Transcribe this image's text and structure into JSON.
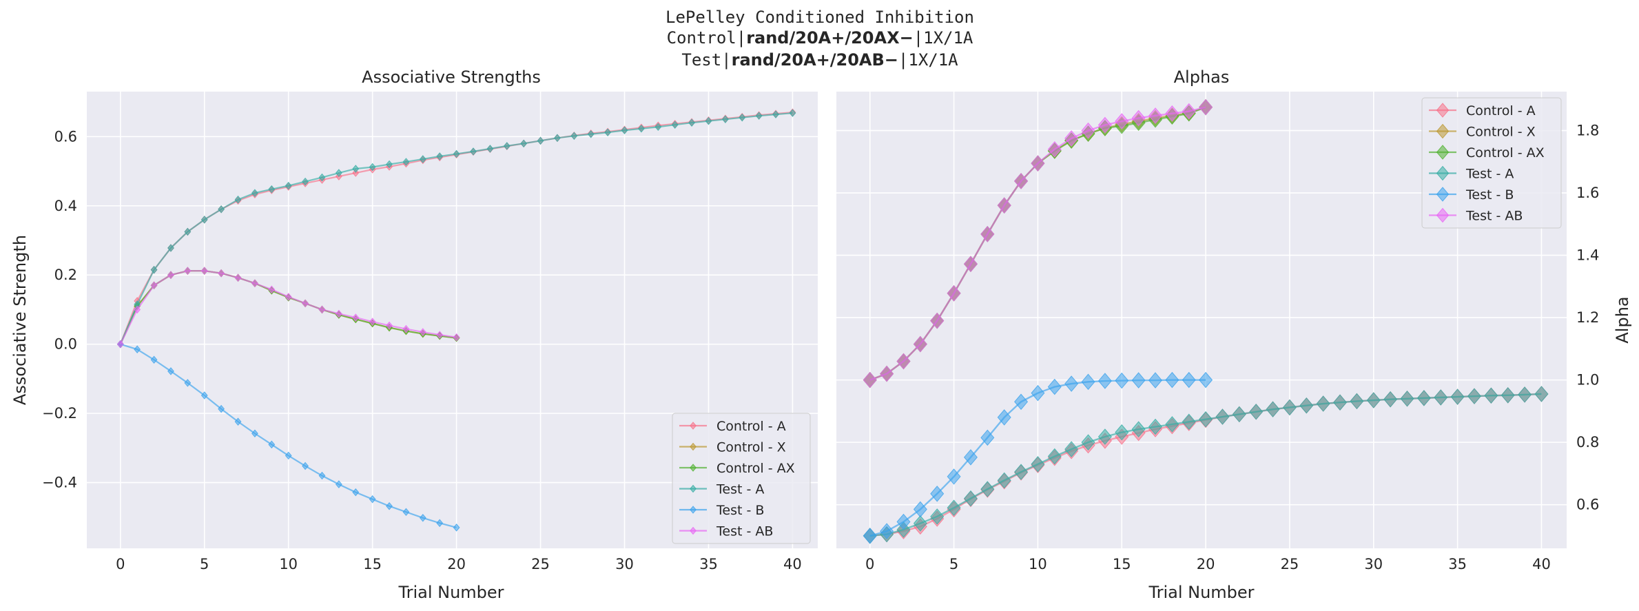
{
  "suptitle": {
    "line1": "LePelley Conditioned Inhibition",
    "line2_prefix": "Control|",
    "line2_bold": "rand/20A+/20AX−",
    "line2_suffix": "|1X/1A",
    "line3_prefix": "Test|",
    "line3_bold": "rand/20A+/20AB−",
    "line3_suffix": "|1X/1A"
  },
  "colors": {
    "Control - A": "#f77189",
    "Control - X": "#bb9832",
    "Control - AX": "#50b131",
    "Test - A": "#36ada4",
    "Test - B": "#3ba3ec",
    "Test - AB": "#e866f4"
  },
  "chart_data": [
    {
      "type": "line",
      "title": "Associative Strengths",
      "xlabel": "Trial Number",
      "ylabel": "Associative Strength",
      "xlim": [
        -2,
        41.5
      ],
      "ylim": [
        -0.59,
        0.73
      ],
      "xticks": [
        0,
        5,
        10,
        15,
        20,
        25,
        30,
        35,
        40
      ],
      "yticks": [
        -0.4,
        -0.2,
        0.0,
        0.2,
        0.4,
        0.6
      ],
      "ytick_labels": [
        "−0.4",
        "−0.2",
        "0.0",
        "0.2",
        "0.4",
        "0.6"
      ],
      "grid": true,
      "legend_position": "lower-right",
      "marker": "small-diamond",
      "series": [
        {
          "name": "Control - A",
          "x": [
            0,
            1,
            2,
            3,
            4,
            5,
            6,
            7,
            8,
            9,
            10,
            11,
            12,
            13,
            14,
            15,
            16,
            17,
            18,
            19,
            20,
            21,
            22,
            23,
            24,
            25,
            26,
            27,
            28,
            29,
            30,
            31,
            32,
            33,
            34,
            35,
            36,
            37,
            38,
            39,
            40
          ],
          "values": [
            0,
            0.125,
            0.215,
            0.278,
            0.325,
            0.36,
            0.39,
            0.415,
            0.433,
            0.445,
            0.455,
            0.465,
            0.475,
            0.485,
            0.495,
            0.505,
            0.513,
            0.522,
            0.532,
            0.54,
            0.548,
            0.556,
            0.564,
            0.572,
            0.58,
            0.588,
            0.596,
            0.603,
            0.609,
            0.614,
            0.62,
            0.626,
            0.632,
            0.637,
            0.642,
            0.647,
            0.652,
            0.657,
            0.662,
            0.666,
            0.67
          ]
        },
        {
          "name": "Control - X",
          "x": [
            0,
            1,
            2,
            3,
            4,
            5,
            6,
            7,
            8,
            9,
            10,
            11,
            12,
            13,
            14,
            15,
            16,
            17,
            18,
            19,
            20
          ],
          "values": [
            0,
            0.11,
            0.17,
            0.2,
            0.212,
            0.212,
            0.205,
            0.192,
            0.176,
            0.155,
            0.135,
            0.118,
            0.1,
            0.085,
            0.072,
            0.06,
            0.048,
            0.038,
            0.03,
            0.024,
            0.018
          ]
        },
        {
          "name": "Control - AX",
          "x": [
            0,
            1,
            2,
            3,
            4,
            5,
            6,
            7,
            8,
            9,
            10,
            11,
            12,
            13,
            14,
            15,
            16,
            17,
            18,
            19,
            20
          ],
          "values": [
            0,
            0.11,
            0.17,
            0.2,
            0.212,
            0.212,
            0.205,
            0.192,
            0.176,
            0.155,
            0.135,
            0.118,
            0.1,
            0.085,
            0.072,
            0.06,
            0.048,
            0.038,
            0.03,
            0.024,
            0.018
          ]
        },
        {
          "name": "Test - A",
          "x": [
            0,
            1,
            2,
            3,
            4,
            5,
            6,
            7,
            8,
            9,
            10,
            11,
            12,
            13,
            14,
            15,
            16,
            17,
            18,
            19,
            20,
            21,
            22,
            23,
            24,
            25,
            26,
            27,
            28,
            29,
            30,
            31,
            32,
            33,
            34,
            35,
            36,
            37,
            38,
            39,
            40
          ],
          "values": [
            0,
            0.115,
            0.215,
            0.278,
            0.325,
            0.36,
            0.39,
            0.418,
            0.437,
            0.448,
            0.458,
            0.47,
            0.482,
            0.495,
            0.507,
            0.512,
            0.52,
            0.527,
            0.535,
            0.543,
            0.55,
            0.557,
            0.565,
            0.573,
            0.58,
            0.588,
            0.596,
            0.602,
            0.607,
            0.612,
            0.618,
            0.623,
            0.628,
            0.634,
            0.64,
            0.645,
            0.65,
            0.655,
            0.66,
            0.664,
            0.668
          ]
        },
        {
          "name": "Test - B",
          "x": [
            0,
            1,
            2,
            3,
            4,
            5,
            6,
            7,
            8,
            9,
            10,
            11,
            12,
            13,
            14,
            15,
            16,
            17,
            18,
            19,
            20
          ],
          "values": [
            0,
            -0.015,
            -0.045,
            -0.078,
            -0.112,
            -0.148,
            -0.187,
            -0.224,
            -0.258,
            -0.29,
            -0.322,
            -0.352,
            -0.38,
            -0.405,
            -0.428,
            -0.448,
            -0.468,
            -0.485,
            -0.502,
            -0.517,
            -0.53
          ]
        },
        {
          "name": "Test - AB",
          "x": [
            0,
            1,
            2,
            3,
            4,
            5,
            6,
            7,
            8,
            9,
            10,
            11,
            12,
            13,
            14,
            15,
            16,
            17,
            18,
            19,
            20
          ],
          "values": [
            0,
            0.1,
            0.17,
            0.2,
            0.212,
            0.212,
            0.205,
            0.192,
            0.176,
            0.158,
            0.137,
            0.118,
            0.1,
            0.088,
            0.077,
            0.065,
            0.054,
            0.044,
            0.035,
            0.027,
            0.02
          ]
        }
      ]
    },
    {
      "type": "line",
      "title": "Alphas",
      "xlabel": "Trial Number",
      "ylabel": "Alpha",
      "xlim": [
        -2,
        41.5
      ],
      "ylim": [
        0.46,
        1.925
      ],
      "xticks": [
        0,
        5,
        10,
        15,
        20,
        25,
        30,
        35,
        40
      ],
      "yticks": [
        0.6,
        0.8,
        1.0,
        1.2,
        1.4,
        1.6,
        1.8
      ],
      "ytick_labels": [
        "0.6",
        "0.8",
        "1.0",
        "1.2",
        "1.4",
        "1.6",
        "1.8"
      ],
      "grid": true,
      "legend_position": "upper-right",
      "y_axis_side": "right",
      "marker": "large-diamond",
      "series": [
        {
          "name": "Control - A",
          "x": [
            0,
            1,
            2,
            3,
            4,
            5,
            6,
            7,
            8,
            9,
            10,
            11,
            12,
            13,
            14,
            15,
            16,
            17,
            18,
            19,
            20,
            21,
            22,
            23,
            24,
            25,
            26,
            27,
            28,
            29,
            30,
            31,
            32,
            33,
            34,
            35,
            36,
            37,
            38,
            39,
            40
          ],
          "values": [
            0.5,
            0.505,
            0.515,
            0.53,
            0.555,
            0.585,
            0.618,
            0.648,
            0.675,
            0.703,
            0.727,
            0.75,
            0.772,
            0.79,
            0.805,
            0.818,
            0.83,
            0.842,
            0.852,
            0.862,
            0.872,
            0.882,
            0.89,
            0.898,
            0.906,
            0.912,
            0.918,
            0.924,
            0.928,
            0.932,
            0.935,
            0.938,
            0.94,
            0.942,
            0.944,
            0.946,
            0.948,
            0.95,
            0.951,
            0.953,
            0.955
          ]
        },
        {
          "name": "Control - X",
          "x": [
            0,
            1,
            2,
            3,
            4,
            5,
            6,
            7,
            8,
            9,
            10,
            11,
            12,
            13,
            14,
            15,
            16,
            17,
            18,
            19,
            20
          ],
          "values": [
            1.0,
            1.02,
            1.06,
            1.115,
            1.19,
            1.278,
            1.372,
            1.468,
            1.56,
            1.638,
            1.695,
            1.735,
            1.768,
            1.79,
            1.808,
            1.82,
            1.83,
            1.84,
            1.848,
            1.856,
            1.875
          ]
        },
        {
          "name": "Control - AX",
          "x": [
            0,
            1,
            2,
            3,
            4,
            5,
            6,
            7,
            8,
            9,
            10,
            11,
            12,
            13,
            14,
            15,
            16,
            17,
            18,
            19,
            20
          ],
          "values": [
            1.0,
            1.02,
            1.06,
            1.115,
            1.19,
            1.278,
            1.372,
            1.468,
            1.56,
            1.638,
            1.695,
            1.735,
            1.768,
            1.79,
            1.808,
            1.815,
            1.825,
            1.835,
            1.845,
            1.855,
            1.875
          ]
        },
        {
          "name": "Test - A",
          "x": [
            0,
            1,
            2,
            3,
            4,
            5,
            6,
            7,
            8,
            9,
            10,
            11,
            12,
            13,
            14,
            15,
            16,
            17,
            18,
            19,
            20,
            21,
            22,
            23,
            24,
            25,
            26,
            27,
            28,
            29,
            30,
            31,
            32,
            33,
            34,
            35,
            36,
            37,
            38,
            39,
            40
          ],
          "values": [
            0.5,
            0.505,
            0.52,
            0.54,
            0.562,
            0.59,
            0.62,
            0.65,
            0.678,
            0.705,
            0.73,
            0.755,
            0.778,
            0.8,
            0.818,
            0.832,
            0.842,
            0.85,
            0.858,
            0.866,
            0.874,
            0.882,
            0.89,
            0.898,
            0.906,
            0.912,
            0.918,
            0.924,
            0.928,
            0.932,
            0.935,
            0.938,
            0.94,
            0.942,
            0.944,
            0.946,
            0.948,
            0.95,
            0.951,
            0.953,
            0.955
          ]
        },
        {
          "name": "Test - B",
          "x": [
            0,
            1,
            2,
            3,
            4,
            5,
            6,
            7,
            8,
            9,
            10,
            11,
            12,
            13,
            14,
            15,
            16,
            17,
            18,
            19,
            20
          ],
          "values": [
            0.5,
            0.515,
            0.545,
            0.585,
            0.635,
            0.69,
            0.752,
            0.815,
            0.88,
            0.93,
            0.958,
            0.978,
            0.988,
            0.994,
            0.997,
            0.998,
            0.999,
            0.999,
            1.0,
            1.0,
            1.0
          ]
        },
        {
          "name": "Test - AB",
          "x": [
            0,
            1,
            2,
            3,
            4,
            5,
            6,
            7,
            8,
            9,
            10,
            11,
            12,
            13,
            14,
            15,
            16,
            17,
            18,
            19,
            20
          ],
          "values": [
            1.0,
            1.02,
            1.06,
            1.115,
            1.19,
            1.278,
            1.372,
            1.468,
            1.56,
            1.638,
            1.695,
            1.74,
            1.775,
            1.8,
            1.818,
            1.83,
            1.84,
            1.848,
            1.855,
            1.862,
            1.875
          ]
        }
      ]
    }
  ]
}
